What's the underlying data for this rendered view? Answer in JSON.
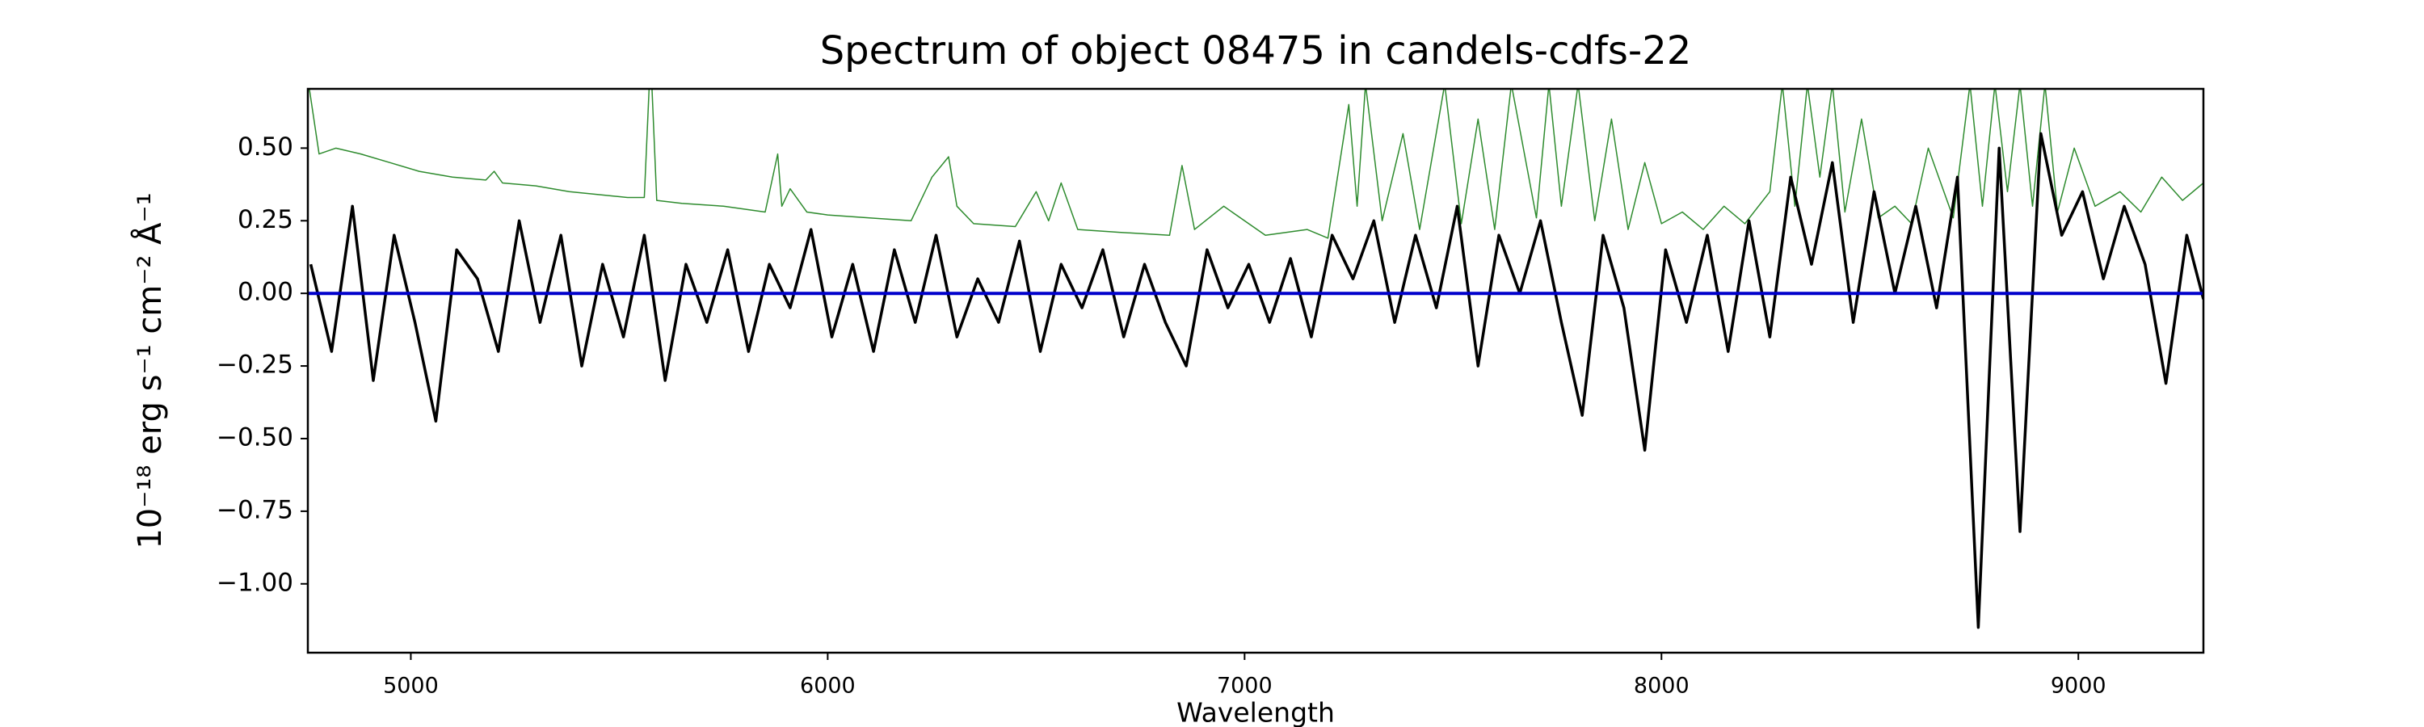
{
  "chart_data": {
    "type": "line",
    "title": "Spectrum of object 08475 in candels-cdfs-22",
    "xlabel": "Wavelength",
    "ylabel": "10⁻¹⁸ erg s⁻¹ cm⁻² Å⁻¹",
    "xlim": [
      4753,
      9300
    ],
    "ylim": [
      -1.237,
      0.704
    ],
    "xticks": [
      5000,
      6000,
      7000,
      8000,
      9000
    ],
    "yticks": [
      {
        "value": 0.5,
        "label": "0.50"
      },
      {
        "value": 0.25,
        "label": "0.25"
      },
      {
        "value": 0,
        "label": "0.00"
      },
      {
        "value": -0.25,
        "label": "−0.25"
      },
      {
        "value": -0.5,
        "label": "−0.50"
      },
      {
        "value": -0.75,
        "label": "−0.75"
      },
      {
        "value": -1,
        "label": "−1.00"
      }
    ],
    "grid": false,
    "series": [
      {
        "color": "#2e8b2e",
        "width": 1.5,
        "x": [
          4755,
          4780,
          4820,
          4880,
          4950,
          5020,
          5100,
          5180,
          5200,
          5220,
          5300,
          5380,
          5450,
          5520,
          5560,
          5572,
          5578,
          5590,
          5650,
          5750,
          5850,
          5880,
          5890,
          5910,
          5950,
          6000,
          6100,
          6200,
          6250,
          6290,
          6310,
          6350,
          6450,
          6500,
          6530,
          6560,
          6600,
          6700,
          6820,
          6850,
          6880,
          6950,
          7050,
          7150,
          7200,
          7250,
          7270,
          7290,
          7330,
          7380,
          7420,
          7480,
          7520,
          7560,
          7600,
          7640,
          7700,
          7730,
          7760,
          7800,
          7840,
          7880,
          7920,
          7960,
          8000,
          8050,
          8100,
          8150,
          8200,
          8260,
          8290,
          8320,
          8350,
          8380,
          8410,
          8440,
          8480,
          8520,
          8560,
          8600,
          8640,
          8700,
          8740,
          8770,
          8800,
          8830,
          8860,
          8890,
          8920,
          8950,
          8990,
          9040,
          9100,
          9150,
          9200,
          9250,
          9300
        ],
        "values": [
          0.72,
          0.48,
          0.5,
          0.48,
          0.45,
          0.42,
          0.4,
          0.39,
          0.42,
          0.38,
          0.37,
          0.35,
          0.34,
          0.33,
          0.33,
          0.72,
          0.72,
          0.32,
          0.31,
          0.3,
          0.28,
          0.48,
          0.3,
          0.36,
          0.28,
          0.27,
          0.26,
          0.25,
          0.4,
          0.47,
          0.3,
          0.24,
          0.23,
          0.35,
          0.25,
          0.38,
          0.22,
          0.21,
          0.2,
          0.44,
          0.22,
          0.3,
          0.2,
          0.22,
          0.19,
          0.65,
          0.3,
          0.72,
          0.25,
          0.55,
          0.22,
          0.72,
          0.24,
          0.6,
          0.22,
          0.72,
          0.26,
          0.72,
          0.3,
          0.72,
          0.25,
          0.6,
          0.22,
          0.45,
          0.24,
          0.28,
          0.22,
          0.3,
          0.24,
          0.35,
          0.72,
          0.3,
          0.72,
          0.4,
          0.72,
          0.28,
          0.6,
          0.26,
          0.3,
          0.24,
          0.5,
          0.26,
          0.72,
          0.3,
          0.72,
          0.35,
          0.72,
          0.3,
          0.72,
          0.28,
          0.5,
          0.3,
          0.35,
          0.28,
          0.4,
          0.32,
          0.38
        ]
      },
      {
        "color": "#000000",
        "width": 3.5,
        "x": [
          4760,
          4810,
          4860,
          4910,
          4960,
          5010,
          5060,
          5110,
          5160,
          5210,
          5260,
          5310,
          5360,
          5410,
          5460,
          5510,
          5560,
          5610,
          5660,
          5710,
          5760,
          5810,
          5860,
          5910,
          5960,
          6010,
          6060,
          6110,
          6160,
          6210,
          6260,
          6310,
          6360,
          6410,
          6460,
          6510,
          6560,
          6610,
          6660,
          6710,
          6760,
          6810,
          6860,
          6910,
          6960,
          7010,
          7060,
          7110,
          7160,
          7210,
          7260,
          7310,
          7360,
          7410,
          7460,
          7510,
          7560,
          7610,
          7660,
          7710,
          7760,
          7810,
          7860,
          7910,
          7960,
          8010,
          8060,
          8110,
          8160,
          8210,
          8260,
          8310,
          8360,
          8410,
          8460,
          8510,
          8560,
          8610,
          8660,
          8710,
          8760,
          8810,
          8860,
          8910,
          8960,
          9010,
          9060,
          9110,
          9160,
          9210,
          9260,
          9300
        ],
        "values": [
          0.1,
          -0.2,
          0.3,
          -0.3,
          0.2,
          -0.1,
          -0.44,
          0.15,
          0.05,
          -0.2,
          0.25,
          -0.1,
          0.2,
          -0.25,
          0.1,
          -0.15,
          0.2,
          -0.3,
          0.1,
          -0.1,
          0.15,
          -0.2,
          0.1,
          -0.05,
          0.22,
          -0.15,
          0.1,
          -0.2,
          0.15,
          -0.1,
          0.2,
          -0.15,
          0.05,
          -0.1,
          0.18,
          -0.2,
          0.1,
          -0.05,
          0.15,
          -0.15,
          0.1,
          -0.1,
          -0.25,
          0.15,
          -0.05,
          0.1,
          -0.1,
          0.12,
          -0.15,
          0.2,
          0.05,
          0.25,
          -0.1,
          0.2,
          -0.05,
          0.3,
          -0.25,
          0.2,
          0.0,
          0.25,
          -0.1,
          -0.42,
          0.2,
          -0.05,
          -0.54,
          0.15,
          -0.1,
          0.2,
          -0.2,
          0.25,
          -0.15,
          0.4,
          0.1,
          0.45,
          -0.1,
          0.35,
          0.0,
          0.3,
          -0.05,
          0.4,
          -1.15,
          0.5,
          -0.82,
          0.55,
          0.2,
          0.35,
          0.05,
          0.3,
          0.1,
          -0.31,
          0.2,
          -0.02
        ]
      },
      {
        "color": "#0000cc",
        "width": 4,
        "x": [
          4753,
          9300
        ],
        "values": [
          0,
          0
        ]
      }
    ]
  }
}
